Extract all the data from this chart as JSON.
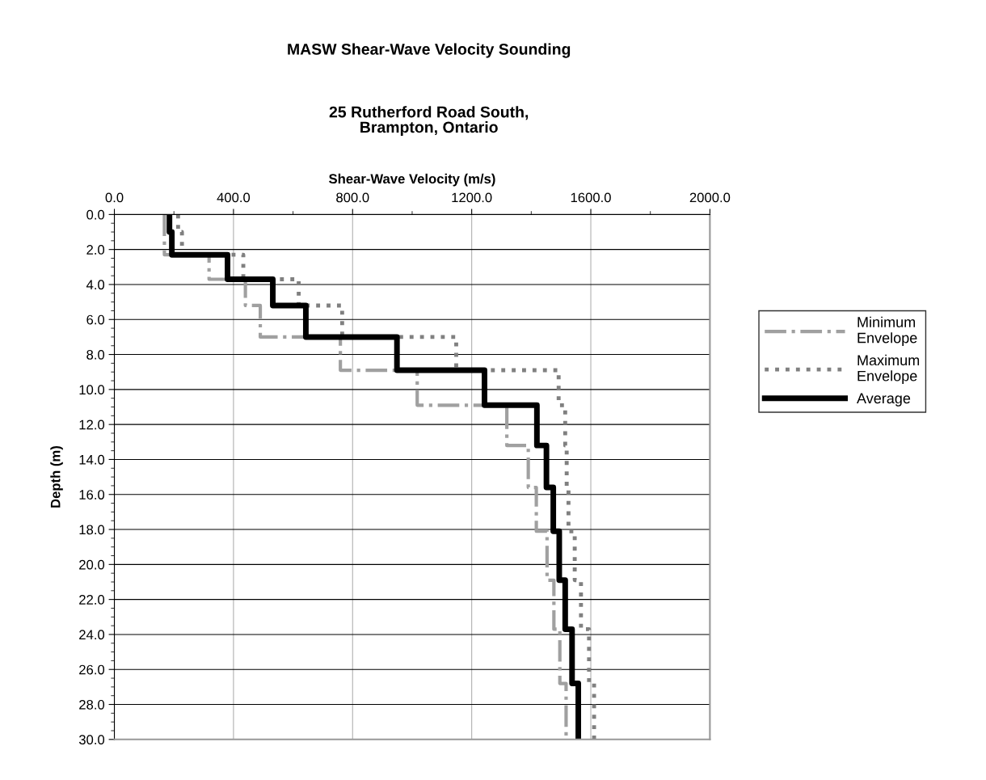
{
  "chart_data": {
    "type": "line",
    "title": "MASW Shear-Wave Velocity Sounding",
    "subtitle": "25 Rutherford Road South,\nBrampton, Ontario",
    "xlabel": "Shear-Wave Velocity (m/s)",
    "ylabel": "Depth (m)",
    "xlim": [
      0,
      2000
    ],
    "xticks": [
      {
        "value": 0,
        "label": "0.0"
      },
      {
        "value": 400,
        "label": "400.0"
      },
      {
        "value": 800,
        "label": "800.0"
      },
      {
        "value": 1200,
        "label": "1200.0"
      },
      {
        "value": 1600,
        "label": "1600.0"
      },
      {
        "value": 2000,
        "label": "2000.0"
      }
    ],
    "ylim": [
      30,
      0
    ],
    "yticks": [
      {
        "value": 0,
        "label": "0.0"
      },
      {
        "value": 2,
        "label": "2.0"
      },
      {
        "value": 4,
        "label": "4.0"
      },
      {
        "value": 6,
        "label": "6.0"
      },
      {
        "value": 8,
        "label": "8.0"
      },
      {
        "value": 10,
        "label": "10.0"
      },
      {
        "value": 12,
        "label": "12.0"
      },
      {
        "value": 14,
        "label": "14.0"
      },
      {
        "value": 16,
        "label": "16.0"
      },
      {
        "value": 18,
        "label": "18.0"
      },
      {
        "value": 20,
        "label": "20.0"
      },
      {
        "value": 22,
        "label": "22.0"
      },
      {
        "value": 24,
        "label": "24.0"
      },
      {
        "value": 26,
        "label": "26.0"
      },
      {
        "value": 28,
        "label": "28.0"
      },
      {
        "value": 30,
        "label": "30.0"
      }
    ],
    "grid": true,
    "legend": "right",
    "marker": "none",
    "series": [
      {
        "name": "Minimum\nEnvelope",
        "color": "#a0a0a0",
        "line_style": "dashdot",
        "x": [
          168,
          168,
          318,
          318,
          440,
          440,
          490,
          490,
          759,
          759,
          1017,
          1017,
          1318,
          1318,
          1390,
          1390,
          1417,
          1417,
          1453,
          1453,
          1476,
          1476,
          1496,
          1496,
          1517,
          1517
        ],
        "values": [
          0,
          2.3,
          2.3,
          3.7,
          3.7,
          5.2,
          5.2,
          7.0,
          7.0,
          8.9,
          8.9,
          10.9,
          10.9,
          13.2,
          13.2,
          15.6,
          15.6,
          18.1,
          18.1,
          20.9,
          20.9,
          23.7,
          23.7,
          26.8,
          26.8,
          30
        ]
      },
      {
        "name": "Maximum\nEnvelope",
        "color": "#808080",
        "line_style": "dotted",
        "x": [
          214,
          214,
          227,
          227,
          433,
          433,
          619,
          619,
          765,
          765,
          1148,
          1148,
          1492,
          1492,
          1514,
          1514,
          1519,
          1519,
          1525,
          1525,
          1546,
          1546,
          1567,
          1567,
          1594,
          1594,
          1611,
          1611
        ],
        "values": [
          0,
          1.0,
          1.0,
          2.3,
          2.3,
          3.7,
          3.7,
          5.2,
          5.2,
          7.0,
          7.0,
          8.9,
          8.9,
          10.9,
          10.9,
          13.2,
          13.2,
          15.6,
          15.6,
          18.1,
          18.1,
          20.9,
          20.9,
          23.7,
          23.7,
          26.8,
          26.8,
          30
        ]
      },
      {
        "name": "Average",
        "color": "#000000",
        "line_style": "solid",
        "x": [
          185,
          185,
          193,
          193,
          380,
          380,
          532,
          532,
          643,
          643,
          949,
          949,
          1243,
          1243,
          1419,
          1419,
          1451,
          1451,
          1474,
          1474,
          1494,
          1494,
          1514,
          1514,
          1537,
          1537,
          1558,
          1558
        ],
        "values": [
          0,
          1.0,
          1.0,
          2.3,
          2.3,
          3.7,
          3.7,
          5.2,
          5.2,
          7.0,
          7.0,
          8.9,
          8.9,
          10.9,
          10.9,
          13.2,
          13.2,
          15.6,
          15.6,
          18.1,
          18.1,
          20.9,
          20.9,
          23.7,
          23.7,
          26.8,
          26.8,
          30
        ]
      }
    ]
  }
}
